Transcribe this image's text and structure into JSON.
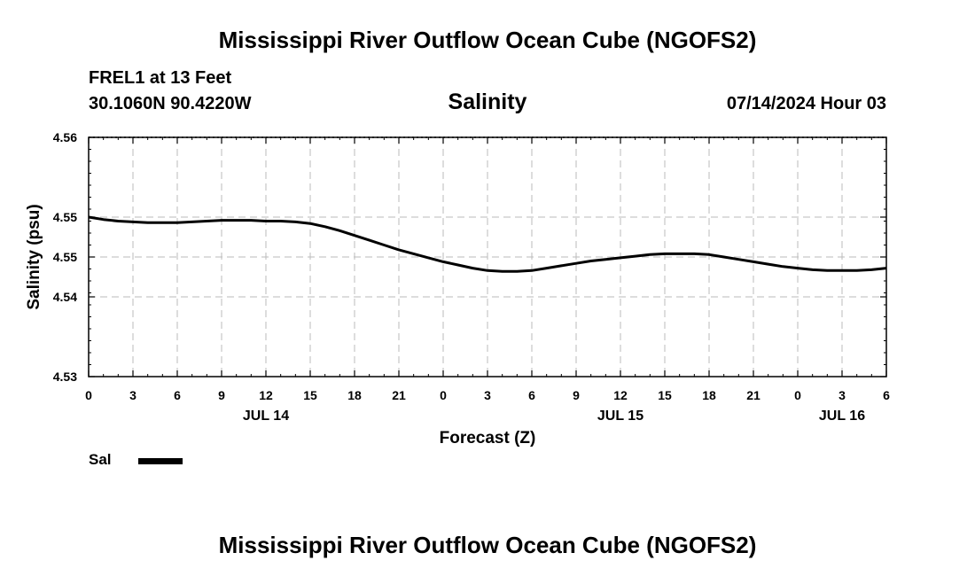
{
  "header": {
    "title": "Mississippi River Outflow Ocean Cube (NGOFS2)",
    "station": "FREL1 at 13 Feet",
    "coords": "30.1060N  90.4220W",
    "subtitle": "Salinity",
    "datetime": "07/14/2024 Hour 03"
  },
  "footer": {
    "title": "Mississippi River Outflow Ocean Cube (NGOFS2)"
  },
  "legend": {
    "label": "Sal",
    "color": "#000000"
  },
  "chart_data": {
    "type": "line",
    "title": "Salinity",
    "xlabel": "Forecast (Z)",
    "ylabel": "Salinity (psu)",
    "x_unit": "hours from 07/14/2024 00Z",
    "xlim": [
      0,
      54
    ],
    "x_ticks": [
      0,
      3,
      6,
      9,
      12,
      15,
      18,
      21,
      24,
      27,
      30,
      33,
      36,
      39,
      42,
      45,
      48,
      51,
      54
    ],
    "x_tick_labels": [
      "0",
      "3",
      "6",
      "9",
      "12",
      "15",
      "18",
      "21",
      "0",
      "3",
      "6",
      "9",
      "12",
      "15",
      "18",
      "21",
      "0",
      "3",
      "6"
    ],
    "date_labels": [
      {
        "x": 12,
        "label": "JUL 14"
      },
      {
        "x": 36,
        "label": "JUL 15"
      },
      {
        "x": 51,
        "label": "JUL 16"
      }
    ],
    "ylim": [
      4.53,
      4.56
    ],
    "y_ticks": [
      4.53,
      4.54,
      4.55,
      4.56
    ],
    "y_tick_labels": [
      "4.53",
      "4.54",
      "4.55",
      "4.55",
      "4.56"
    ],
    "y_tick_values": [
      4.53,
      4.54,
      4.545,
      4.55,
      4.56
    ],
    "grid": true,
    "series": [
      {
        "name": "Sal",
        "x": [
          0,
          1,
          2,
          3,
          4,
          5,
          6,
          7,
          8,
          9,
          10,
          11,
          12,
          13,
          14,
          15,
          16,
          17,
          18,
          19,
          20,
          21,
          22,
          23,
          24,
          25,
          26,
          27,
          28,
          29,
          30,
          31,
          32,
          33,
          34,
          35,
          36,
          37,
          38,
          39,
          40,
          41,
          42,
          43,
          44,
          45,
          46,
          47,
          48,
          49,
          50,
          51,
          52,
          53,
          54
        ],
        "values": [
          4.55,
          4.5497,
          4.5495,
          4.5494,
          4.5493,
          4.5493,
          4.5493,
          4.5494,
          4.5495,
          4.5496,
          4.5496,
          4.5496,
          4.5495,
          4.5495,
          4.5494,
          4.5492,
          4.5488,
          4.5483,
          4.5477,
          4.5471,
          4.5465,
          4.5459,
          4.5454,
          4.5449,
          4.5444,
          4.544,
          4.5436,
          4.5433,
          4.5432,
          4.5432,
          4.5433,
          4.5436,
          4.5439,
          4.5442,
          4.5445,
          4.5447,
          4.5449,
          4.5451,
          4.5453,
          4.5454,
          4.5454,
          4.5454,
          4.5453,
          4.545,
          4.5447,
          4.5444,
          4.5441,
          4.5438,
          4.5436,
          4.5434,
          4.5433,
          4.5433,
          4.5433,
          4.5434,
          4.5436
        ]
      }
    ]
  }
}
